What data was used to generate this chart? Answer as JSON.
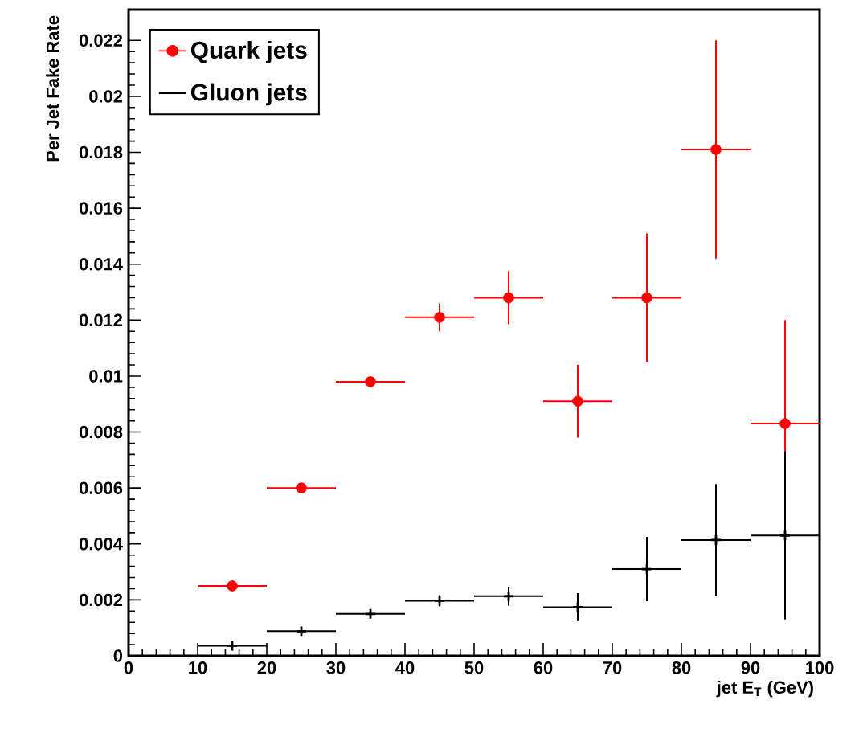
{
  "chart_data": {
    "type": "scatter",
    "xlabel": "jet E$_{T}$ (GeV)",
    "ylabel": "Per Jet Fake Rate",
    "x": [
      15,
      25,
      35,
      45,
      55,
      65,
      75,
      85,
      95
    ],
    "xlim": [
      0,
      100
    ],
    "xticks": [
      0,
      10,
      20,
      30,
      40,
      50,
      60,
      70,
      80,
      90,
      100
    ],
    "ylim": [
      0,
      0.0231
    ],
    "yticks": [
      0,
      0.002,
      0.004,
      0.006,
      0.008,
      0.01,
      0.012,
      0.014,
      0.016,
      0.018,
      0.02,
      0.022
    ],
    "grid": false,
    "legend": "top left",
    "series": [
      {
        "name": "Quark jets",
        "color": "#ff0000",
        "marker": "circle",
        "values": [
          0.0025,
          0.006,
          0.0098,
          0.0121,
          0.0128,
          0.0091,
          0.0128,
          0.0181,
          0.0083
        ],
        "errors": [
          null,
          null,
          null,
          0.0005,
          0.00095,
          0.0013,
          0.0023,
          0.0039,
          0.0037
        ],
        "xerrors": [
          5,
          5,
          5,
          5,
          5,
          5,
          5,
          5,
          5
        ]
      },
      {
        "name": "Gluon jets",
        "color": "#000000",
        "marker": "cross",
        "values": [
          0.00036,
          0.00088,
          0.0015,
          0.00197,
          0.00213,
          0.00174,
          0.0031,
          0.00414,
          0.0043
        ],
        "errors": [
          null,
          null,
          null,
          0.0002,
          0.00034,
          0.0005,
          0.00115,
          0.002,
          0.003
        ],
        "xerrors": [
          5,
          5,
          5,
          5,
          5,
          5,
          5,
          5,
          5
        ]
      }
    ]
  }
}
